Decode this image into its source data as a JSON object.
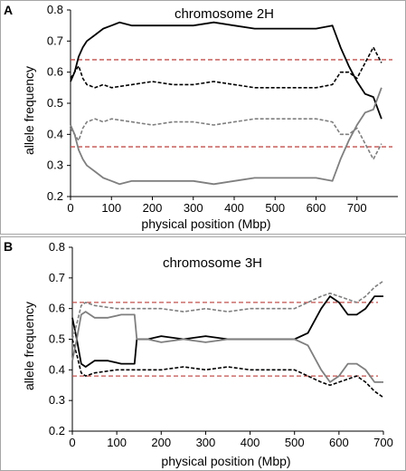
{
  "colors": {
    "black_series": "#000000",
    "gray_series": "#7f7f7f",
    "threshold": "#c0504d",
    "frame": "#a6a6a6"
  },
  "chart_data": [
    {
      "panel": "A",
      "type": "line",
      "title": "chromosome 2H",
      "xlabel": "physical position (Mbp)",
      "ylabel": "allele frequency",
      "xlim": [
        0,
        800
      ],
      "ylim": [
        0.2,
        0.8
      ],
      "xticks": [
        "0",
        "100",
        "200",
        "300",
        "400",
        "500",
        "600",
        "700"
      ],
      "yticks": [
        "0.2",
        "0.3",
        "0.4",
        "0.5",
        "0.6",
        "0.7",
        "0.8"
      ],
      "grid": false,
      "thresholds": [
        0.64,
        0.36
      ],
      "series": [
        {
          "style": "solid-black",
          "x": [
            0,
            10,
            20,
            30,
            40,
            60,
            80,
            100,
            120,
            150,
            200,
            250,
            300,
            350,
            400,
            450,
            500,
            550,
            600,
            640,
            660,
            680,
            700,
            720,
            740,
            760
          ],
          "y": [
            0.57,
            0.6,
            0.65,
            0.68,
            0.7,
            0.72,
            0.74,
            0.75,
            0.76,
            0.75,
            0.75,
            0.75,
            0.75,
            0.76,
            0.75,
            0.74,
            0.74,
            0.74,
            0.74,
            0.75,
            0.68,
            0.62,
            0.57,
            0.53,
            0.52,
            0.45
          ]
        },
        {
          "style": "dashed-black",
          "x": [
            0,
            10,
            20,
            30,
            40,
            60,
            80,
            100,
            150,
            200,
            250,
            300,
            350,
            400,
            450,
            500,
            550,
            600,
            640,
            660,
            680,
            700,
            720,
            740,
            760
          ],
          "y": [
            0.58,
            0.6,
            0.62,
            0.58,
            0.56,
            0.55,
            0.56,
            0.55,
            0.56,
            0.57,
            0.56,
            0.56,
            0.57,
            0.56,
            0.55,
            0.55,
            0.55,
            0.55,
            0.56,
            0.6,
            0.6,
            0.58,
            0.63,
            0.68,
            0.63
          ]
        },
        {
          "style": "dashed-gray",
          "x": [
            0,
            10,
            20,
            30,
            40,
            60,
            80,
            100,
            150,
            200,
            250,
            300,
            350,
            400,
            450,
            500,
            550,
            600,
            640,
            660,
            680,
            700,
            720,
            740,
            760
          ],
          "y": [
            0.42,
            0.4,
            0.38,
            0.42,
            0.44,
            0.45,
            0.44,
            0.45,
            0.44,
            0.43,
            0.44,
            0.44,
            0.43,
            0.44,
            0.45,
            0.45,
            0.45,
            0.45,
            0.44,
            0.4,
            0.4,
            0.42,
            0.37,
            0.32,
            0.37
          ]
        },
        {
          "style": "solid-gray",
          "x": [
            0,
            10,
            20,
            30,
            40,
            60,
            80,
            100,
            120,
            150,
            200,
            250,
            300,
            350,
            400,
            450,
            500,
            550,
            600,
            640,
            660,
            680,
            700,
            720,
            740,
            760
          ],
          "y": [
            0.43,
            0.4,
            0.35,
            0.32,
            0.3,
            0.28,
            0.26,
            0.25,
            0.24,
            0.25,
            0.25,
            0.25,
            0.25,
            0.24,
            0.25,
            0.26,
            0.26,
            0.26,
            0.26,
            0.25,
            0.32,
            0.38,
            0.43,
            0.47,
            0.48,
            0.55
          ]
        }
      ]
    },
    {
      "panel": "B",
      "type": "line",
      "title": "chromosome 3H",
      "xlabel": "physical position (Mbp)",
      "ylabel": "allele frequency",
      "xlim": [
        0,
        700
      ],
      "ylim": [
        0.2,
        0.8
      ],
      "xticks": [
        "0",
        "100",
        "200",
        "300",
        "400",
        "500",
        "600",
        "700"
      ],
      "yticks": [
        "0.2",
        "0.3",
        "0.4",
        "0.5",
        "0.6",
        "0.7",
        "0.8"
      ],
      "grid": false,
      "thresholds": [
        0.62,
        0.38
      ],
      "series": [
        {
          "style": "solid-black",
          "x": [
            0,
            10,
            20,
            30,
            50,
            80,
            110,
            140,
            145,
            170,
            200,
            250,
            300,
            350,
            400,
            450,
            500,
            530,
            560,
            580,
            600,
            620,
            640,
            660,
            680,
            700
          ],
          "y": [
            0.57,
            0.5,
            0.42,
            0.41,
            0.43,
            0.43,
            0.42,
            0.42,
            0.5,
            0.5,
            0.51,
            0.5,
            0.51,
            0.5,
            0.5,
            0.5,
            0.5,
            0.52,
            0.6,
            0.64,
            0.62,
            0.58,
            0.58,
            0.6,
            0.64,
            0.64
          ]
        },
        {
          "style": "dashed-black",
          "x": [
            0,
            10,
            20,
            30,
            50,
            100,
            150,
            200,
            250,
            300,
            350,
            400,
            450,
            500,
            530,
            560,
            580,
            600,
            620,
            640,
            660,
            680,
            700
          ],
          "y": [
            0.5,
            0.45,
            0.39,
            0.38,
            0.39,
            0.4,
            0.4,
            0.4,
            0.41,
            0.4,
            0.41,
            0.4,
            0.4,
            0.4,
            0.38,
            0.36,
            0.35,
            0.36,
            0.37,
            0.38,
            0.36,
            0.33,
            0.31
          ]
        },
        {
          "style": "dashed-gray",
          "x": [
            0,
            10,
            20,
            30,
            50,
            100,
            150,
            200,
            250,
            300,
            350,
            400,
            450,
            500,
            530,
            560,
            580,
            600,
            620,
            640,
            660,
            680,
            700
          ],
          "y": [
            0.5,
            0.55,
            0.61,
            0.62,
            0.61,
            0.6,
            0.6,
            0.6,
            0.59,
            0.6,
            0.59,
            0.6,
            0.6,
            0.6,
            0.62,
            0.64,
            0.65,
            0.64,
            0.63,
            0.62,
            0.64,
            0.67,
            0.69
          ]
        },
        {
          "style": "solid-gray",
          "x": [
            0,
            10,
            20,
            30,
            50,
            80,
            110,
            140,
            145,
            170,
            200,
            250,
            300,
            350,
            400,
            450,
            500,
            530,
            560,
            580,
            600,
            620,
            640,
            660,
            680,
            700
          ],
          "y": [
            0.43,
            0.5,
            0.58,
            0.59,
            0.57,
            0.57,
            0.58,
            0.58,
            0.5,
            0.5,
            0.49,
            0.5,
            0.49,
            0.5,
            0.5,
            0.5,
            0.5,
            0.48,
            0.4,
            0.36,
            0.38,
            0.42,
            0.42,
            0.4,
            0.36,
            0.36
          ]
        }
      ]
    }
  ]
}
